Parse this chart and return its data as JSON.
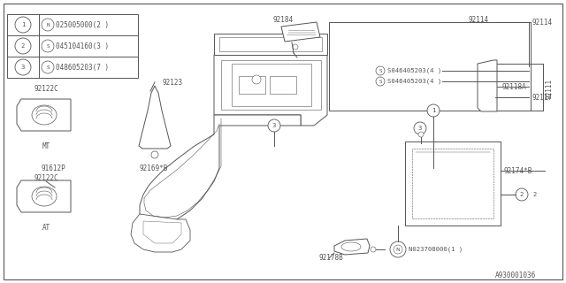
{
  "bg_color": "#ffffff",
  "line_color": "#555555",
  "diagram_ref": "A930001036",
  "parts_table": [
    {
      "num": "1",
      "prefix": "N",
      "code": "025005000",
      "qty": "2"
    },
    {
      "num": "2",
      "prefix": "S",
      "code": "045104160",
      "qty": "3"
    },
    {
      "num": "3",
      "prefix": "S",
      "code": "048605203",
      "qty": "7"
    }
  ]
}
